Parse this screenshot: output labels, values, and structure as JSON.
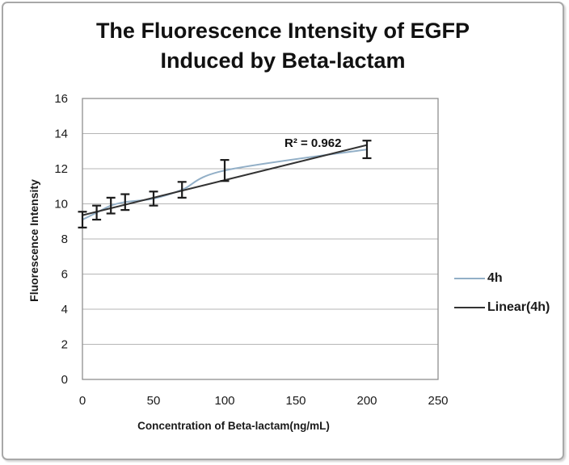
{
  "figure": {
    "title_line1": "The Fluorescence Intensity of EGFP",
    "title_line2": "Induced by Beta-lactam"
  },
  "chart_data": {
    "type": "line",
    "title": "The Fluorescence Intensity of EGFP Induced by Beta-lactam",
    "xlabel": "Concentration of Beta-lactam(ng/mL)",
    "ylabel": "Fluorescence Intensity",
    "xlim": [
      0,
      250
    ],
    "ylim": [
      0,
      16
    ],
    "x_ticks": [
      0,
      50,
      100,
      150,
      200,
      250
    ],
    "y_ticks": [
      0,
      2,
      4,
      6,
      8,
      10,
      12,
      14,
      16
    ],
    "grid": "horizontal",
    "legend_position": "right",
    "annotation": "R² = 0.962",
    "series": [
      {
        "name": "4h",
        "style": "smooth",
        "color": "#92afc7",
        "x": [
          0,
          10,
          20,
          30,
          50,
          70,
          100,
          200
        ],
        "y": [
          9.1,
          9.5,
          9.9,
          10.1,
          10.3,
          10.8,
          11.9,
          13.1
        ],
        "errors": [
          0.45,
          0.4,
          0.45,
          0.45,
          0.4,
          0.45,
          0.6,
          0.5
        ],
        "error_color": "#1c1c1c"
      },
      {
        "name": "Linear(4h)",
        "style": "straight",
        "color": "#333333",
        "x": [
          0,
          200
        ],
        "y": [
          9.35,
          13.35
        ]
      }
    ],
    "colors": {
      "gridline": "#b5b5b5",
      "axis_frame": "#8f8f8f",
      "tick_text": "#1a1a1a"
    }
  }
}
